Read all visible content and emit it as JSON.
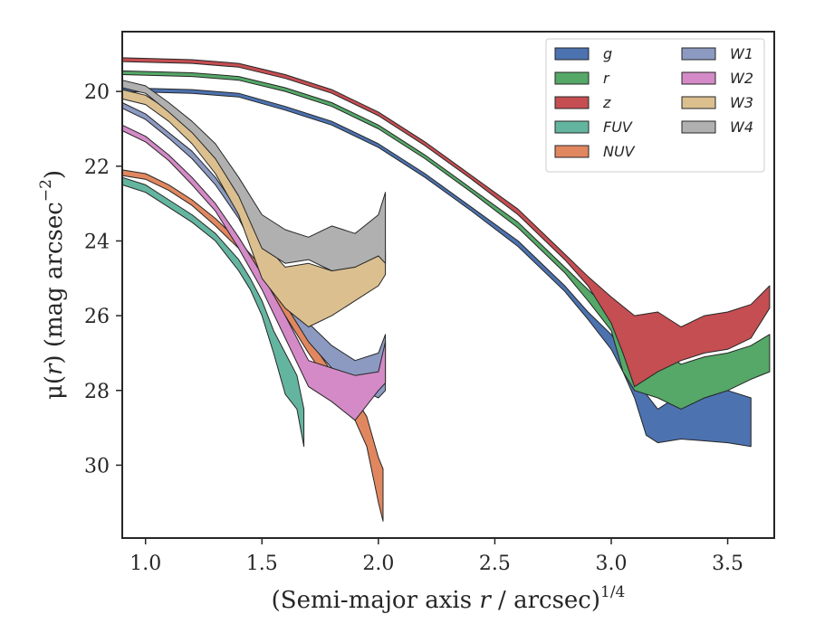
{
  "chart_data": {
    "type": "area",
    "title": "",
    "xlabel": "(Semi-major axis r / arcsec)",
    "xlabel_parts": {
      "pre": "(Semi-major axis ",
      "var": "r",
      "post": " / arcsec)",
      "sup": "1/4"
    },
    "ylabel": "μ(r) (mag arcsec−2)",
    "ylabel_parts": {
      "pre": "μ(",
      "var": "r",
      "post": ") (mag arcsec",
      "sup": "−2",
      "close": ")"
    },
    "xlim": [
      0.9,
      3.7
    ],
    "ylim": [
      31.95,
      18.4
    ],
    "y_inverted": true,
    "xticks": [
      1.0,
      1.5,
      2.0,
      2.5,
      3.0,
      3.5
    ],
    "xtick_labels": [
      "1.0",
      "1.5",
      "2.0",
      "2.5",
      "3.0",
      "3.5"
    ],
    "yticks": [
      20,
      22,
      24,
      26,
      28,
      30
    ],
    "ytick_labels": [
      "20",
      "22",
      "24",
      "26",
      "28",
      "30"
    ],
    "grid": false,
    "legend": {
      "placement": "top-right",
      "columns": 2
    },
    "series": [
      {
        "name": "g",
        "color": "#4c72b0",
        "upper": [
          [
            0.9,
            19.9
          ],
          [
            1.2,
            19.95
          ],
          [
            1.4,
            20.05
          ],
          [
            1.6,
            20.4
          ],
          [
            1.8,
            20.8
          ],
          [
            2.0,
            21.4
          ],
          [
            2.2,
            22.2
          ],
          [
            2.4,
            23.1
          ],
          [
            2.6,
            24.0
          ],
          [
            2.8,
            25.2
          ],
          [
            2.9,
            25.9
          ],
          [
            3.0,
            26.5
          ],
          [
            3.05,
            27.0
          ],
          [
            3.1,
            27.6
          ],
          [
            3.15,
            28.1
          ],
          [
            3.2,
            28.5
          ],
          [
            3.3,
            28.1
          ],
          [
            3.4,
            28.2
          ],
          [
            3.5,
            28.0
          ],
          [
            3.6,
            28.2
          ]
        ],
        "lower": [
          [
            0.9,
            20.0
          ],
          [
            1.2,
            20.05
          ],
          [
            1.4,
            20.15
          ],
          [
            1.6,
            20.5
          ],
          [
            1.8,
            20.9
          ],
          [
            2.0,
            21.5
          ],
          [
            2.2,
            22.3
          ],
          [
            2.4,
            23.2
          ],
          [
            2.6,
            24.15
          ],
          [
            2.8,
            25.35
          ],
          [
            2.9,
            26.1
          ],
          [
            3.0,
            26.9
          ],
          [
            3.05,
            27.5
          ],
          [
            3.1,
            28.2
          ],
          [
            3.15,
            29.2
          ],
          [
            3.2,
            29.4
          ],
          [
            3.3,
            29.3
          ],
          [
            3.4,
            29.35
          ],
          [
            3.5,
            29.4
          ],
          [
            3.6,
            29.5
          ]
        ]
      },
      {
        "name": "r",
        "color": "#55a868",
        "upper": [
          [
            0.9,
            19.45
          ],
          [
            1.2,
            19.5
          ],
          [
            1.4,
            19.6
          ],
          [
            1.6,
            19.9
          ],
          [
            1.8,
            20.3
          ],
          [
            2.0,
            20.9
          ],
          [
            2.2,
            21.7
          ],
          [
            2.4,
            22.6
          ],
          [
            2.6,
            23.5
          ],
          [
            2.8,
            24.7
          ],
          [
            2.9,
            25.3
          ],
          [
            3.0,
            25.9
          ],
          [
            3.1,
            26.4
          ],
          [
            3.2,
            26.9
          ],
          [
            3.3,
            27.3
          ],
          [
            3.4,
            27.1
          ],
          [
            3.5,
            27.0
          ],
          [
            3.6,
            26.8
          ],
          [
            3.68,
            26.5
          ]
        ],
        "lower": [
          [
            0.9,
            19.55
          ],
          [
            1.2,
            19.6
          ],
          [
            1.4,
            19.7
          ],
          [
            1.6,
            20.0
          ],
          [
            1.8,
            20.4
          ],
          [
            2.0,
            21.0
          ],
          [
            2.2,
            21.8
          ],
          [
            2.4,
            22.7
          ],
          [
            2.6,
            23.65
          ],
          [
            2.8,
            24.85
          ],
          [
            2.9,
            25.6
          ],
          [
            3.0,
            26.4
          ],
          [
            3.05,
            27.5
          ],
          [
            3.1,
            28.0
          ],
          [
            3.2,
            28.2
          ],
          [
            3.3,
            28.5
          ],
          [
            3.4,
            28.2
          ],
          [
            3.5,
            28.0
          ],
          [
            3.6,
            27.7
          ],
          [
            3.68,
            27.5
          ]
        ]
      },
      {
        "name": "z",
        "color": "#c44e52",
        "upper": [
          [
            0.9,
            19.1
          ],
          [
            1.2,
            19.15
          ],
          [
            1.4,
            19.25
          ],
          [
            1.6,
            19.55
          ],
          [
            1.8,
            19.95
          ],
          [
            2.0,
            20.55
          ],
          [
            2.2,
            21.35
          ],
          [
            2.4,
            22.25
          ],
          [
            2.6,
            23.15
          ],
          [
            2.8,
            24.35
          ],
          [
            2.9,
            24.95
          ],
          [
            3.0,
            25.5
          ],
          [
            3.1,
            26.0
          ],
          [
            3.2,
            25.9
          ],
          [
            3.3,
            26.3
          ],
          [
            3.4,
            26.0
          ],
          [
            3.5,
            25.9
          ],
          [
            3.6,
            25.7
          ],
          [
            3.68,
            25.2
          ]
        ],
        "lower": [
          [
            0.9,
            19.2
          ],
          [
            1.2,
            19.25
          ],
          [
            1.4,
            19.35
          ],
          [
            1.6,
            19.65
          ],
          [
            1.8,
            20.05
          ],
          [
            2.0,
            20.65
          ],
          [
            2.2,
            21.45
          ],
          [
            2.4,
            22.35
          ],
          [
            2.6,
            23.3
          ],
          [
            2.8,
            24.5
          ],
          [
            2.9,
            25.2
          ],
          [
            3.0,
            26.2
          ],
          [
            3.05,
            27.0
          ],
          [
            3.1,
            27.9
          ],
          [
            3.2,
            27.5
          ],
          [
            3.3,
            27.2
          ],
          [
            3.4,
            27.0
          ],
          [
            3.5,
            26.9
          ],
          [
            3.6,
            26.6
          ],
          [
            3.68,
            25.8
          ]
        ]
      },
      {
        "name": "FUV",
        "color": "#64b5a0",
        "upper": [
          [
            0.9,
            22.3
          ],
          [
            1.0,
            22.5
          ],
          [
            1.1,
            22.9
          ],
          [
            1.2,
            23.3
          ],
          [
            1.3,
            23.8
          ],
          [
            1.4,
            24.5
          ],
          [
            1.45,
            25.0
          ],
          [
            1.5,
            25.6
          ],
          [
            1.55,
            26.4
          ],
          [
            1.6,
            27.0
          ],
          [
            1.65,
            27.6
          ],
          [
            1.68,
            28.5
          ]
        ],
        "lower": [
          [
            0.9,
            22.5
          ],
          [
            1.0,
            22.7
          ],
          [
            1.1,
            23.1
          ],
          [
            1.2,
            23.5
          ],
          [
            1.3,
            24.0
          ],
          [
            1.4,
            24.8
          ],
          [
            1.45,
            25.3
          ],
          [
            1.5,
            26.0
          ],
          [
            1.55,
            27.0
          ],
          [
            1.6,
            28.1
          ],
          [
            1.65,
            28.5
          ],
          [
            1.68,
            29.5
          ]
        ]
      },
      {
        "name": "NUV",
        "color": "#e1875f",
        "upper": [
          [
            0.9,
            22.1
          ],
          [
            1.0,
            22.2
          ],
          [
            1.1,
            22.5
          ],
          [
            1.2,
            22.9
          ],
          [
            1.3,
            23.4
          ],
          [
            1.4,
            24.0
          ],
          [
            1.5,
            24.7
          ],
          [
            1.6,
            25.7
          ],
          [
            1.7,
            26.6
          ],
          [
            1.8,
            27.5
          ],
          [
            1.9,
            28.2
          ],
          [
            1.95,
            28.7
          ],
          [
            2.0,
            29.8
          ],
          [
            2.02,
            30.1
          ]
        ],
        "lower": [
          [
            0.9,
            22.25
          ],
          [
            1.0,
            22.35
          ],
          [
            1.1,
            22.65
          ],
          [
            1.2,
            23.05
          ],
          [
            1.3,
            23.6
          ],
          [
            1.4,
            24.2
          ],
          [
            1.5,
            24.95
          ],
          [
            1.6,
            26.0
          ],
          [
            1.7,
            27.0
          ],
          [
            1.8,
            27.9
          ],
          [
            1.9,
            28.8
          ],
          [
            1.95,
            29.5
          ],
          [
            2.0,
            31.0
          ],
          [
            2.02,
            31.5
          ]
        ]
      },
      {
        "name": "W1",
        "color": "#8c9ac2",
        "upper": [
          [
            0.9,
            20.3
          ],
          [
            1.0,
            20.6
          ],
          [
            1.1,
            21.1
          ],
          [
            1.2,
            21.6
          ],
          [
            1.3,
            22.3
          ],
          [
            1.4,
            23.2
          ],
          [
            1.5,
            24.3
          ],
          [
            1.6,
            25.3
          ],
          [
            1.7,
            26.2
          ],
          [
            1.8,
            26.8
          ],
          [
            1.9,
            27.2
          ],
          [
            2.0,
            27.0
          ],
          [
            2.03,
            26.5
          ]
        ],
        "lower": [
          [
            0.9,
            20.45
          ],
          [
            1.0,
            20.75
          ],
          [
            1.1,
            21.25
          ],
          [
            1.2,
            21.8
          ],
          [
            1.3,
            22.5
          ],
          [
            1.4,
            23.4
          ],
          [
            1.5,
            24.6
          ],
          [
            1.6,
            25.7
          ],
          [
            1.7,
            26.7
          ],
          [
            1.8,
            27.4
          ],
          [
            1.9,
            27.9
          ],
          [
            2.0,
            28.2
          ],
          [
            2.03,
            28.0
          ]
        ]
      },
      {
        "name": "W2",
        "color": "#d48ac7",
        "upper": [
          [
            0.9,
            20.9
          ],
          [
            1.0,
            21.2
          ],
          [
            1.1,
            21.7
          ],
          [
            1.2,
            22.3
          ],
          [
            1.3,
            23.0
          ],
          [
            1.4,
            23.9
          ],
          [
            1.5,
            24.9
          ],
          [
            1.6,
            26.0
          ],
          [
            1.7,
            27.2
          ],
          [
            1.8,
            27.4
          ],
          [
            1.9,
            27.6
          ],
          [
            2.0,
            27.5
          ],
          [
            2.03,
            26.7
          ]
        ],
        "lower": [
          [
            0.9,
            21.05
          ],
          [
            1.0,
            21.35
          ],
          [
            1.1,
            21.85
          ],
          [
            1.2,
            22.5
          ],
          [
            1.3,
            23.2
          ],
          [
            1.4,
            24.2
          ],
          [
            1.5,
            25.3
          ],
          [
            1.6,
            26.6
          ],
          [
            1.7,
            27.9
          ],
          [
            1.8,
            28.3
          ],
          [
            1.9,
            28.8
          ],
          [
            2.0,
            28.0
          ],
          [
            2.03,
            27.8
          ]
        ]
      },
      {
        "name": "W3",
        "color": "#dbbf8f",
        "upper": [
          [
            0.9,
            19.95
          ],
          [
            1.0,
            20.1
          ],
          [
            1.1,
            20.5
          ],
          [
            1.2,
            21.0
          ],
          [
            1.3,
            21.6
          ],
          [
            1.4,
            22.6
          ],
          [
            1.5,
            24.0
          ],
          [
            1.6,
            24.7
          ],
          [
            1.7,
            24.6
          ],
          [
            1.8,
            24.8
          ],
          [
            1.9,
            24.7
          ],
          [
            2.0,
            24.3
          ],
          [
            2.03,
            24.3
          ]
        ],
        "lower": [
          [
            0.9,
            20.2
          ],
          [
            1.0,
            20.35
          ],
          [
            1.1,
            20.8
          ],
          [
            1.2,
            21.4
          ],
          [
            1.3,
            22.2
          ],
          [
            1.4,
            23.3
          ],
          [
            1.5,
            25.0
          ],
          [
            1.6,
            25.8
          ],
          [
            1.7,
            26.3
          ],
          [
            1.8,
            26.0
          ],
          [
            1.9,
            25.6
          ],
          [
            2.0,
            25.2
          ],
          [
            2.03,
            24.9
          ]
        ]
      },
      {
        "name": "W4",
        "color": "#b0b0b0",
        "upper": [
          [
            0.9,
            19.7
          ],
          [
            1.0,
            19.85
          ],
          [
            1.1,
            20.3
          ],
          [
            1.2,
            20.8
          ],
          [
            1.3,
            21.4
          ],
          [
            1.4,
            22.3
          ],
          [
            1.5,
            23.3
          ],
          [
            1.6,
            23.7
          ],
          [
            1.7,
            23.9
          ],
          [
            1.8,
            23.6
          ],
          [
            1.9,
            23.8
          ],
          [
            2.0,
            23.3
          ],
          [
            2.03,
            22.7
          ]
        ],
        "lower": [
          [
            0.9,
            19.9
          ],
          [
            1.0,
            20.05
          ],
          [
            1.1,
            20.55
          ],
          [
            1.2,
            21.1
          ],
          [
            1.3,
            21.8
          ],
          [
            1.4,
            22.8
          ],
          [
            1.5,
            24.2
          ],
          [
            1.6,
            24.6
          ],
          [
            1.7,
            24.5
          ],
          [
            1.8,
            24.8
          ],
          [
            1.9,
            24.7
          ],
          [
            2.0,
            24.4
          ],
          [
            2.03,
            24.6
          ]
        ]
      }
    ]
  }
}
